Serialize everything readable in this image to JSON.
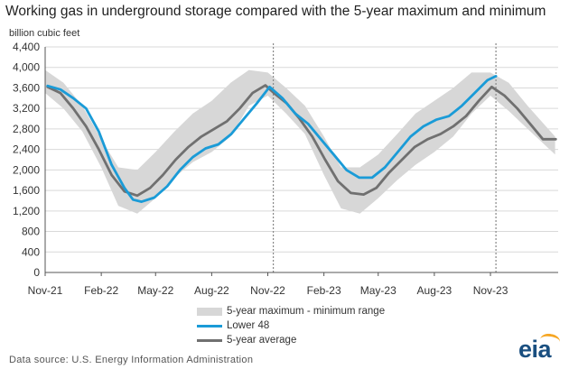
{
  "title": "Working gas in underground  storage compared with the 5-year maximum and minimum",
  "unit_label": "billion cubic feet",
  "source": "Data source:  U.S. Energy Information Administration",
  "logo_text": "eia",
  "colors": {
    "lower48": "#1a9bd7",
    "average": "#707070",
    "range": "#d7d7d7",
    "divider": "#888888",
    "logo": "#1a4f80",
    "logo_accent": "#f6a623"
  },
  "legend": {
    "range": "5-year maximum - minimum range",
    "lower48": "Lower 48",
    "average": "5-year average"
  },
  "chart_data": {
    "type": "area",
    "title": "Working gas in underground  storage compared with the 5-year maximum and minimum",
    "ylabel": "billion cubic feet",
    "ylim": [
      0,
      4400
    ],
    "yticks": [
      0,
      400,
      800,
      1200,
      1600,
      2000,
      2400,
      2800,
      3200,
      3600,
      4000,
      4400
    ],
    "ytick_labels": [
      "0",
      "400",
      "800",
      "1,200",
      "1,600",
      "2,000",
      "2,400",
      "2,800",
      "3,200",
      "3,600",
      "4,000",
      "4,400"
    ],
    "xlim": [
      "2021-11-01",
      "2024-02-20"
    ],
    "xticks": [
      "2021-11-01",
      "2022-02-01",
      "2022-05-01",
      "2022-08-01",
      "2022-11-01",
      "2023-02-01",
      "2023-05-01",
      "2023-08-01",
      "2023-11-01"
    ],
    "xtick_labels": [
      "Nov-21",
      "Feb-22",
      "May-22",
      "Aug-22",
      "Nov-22",
      "Feb-23",
      "May-23",
      "Aug-23",
      "Nov-23"
    ],
    "grid": "horizontal",
    "legend_position": "bottom",
    "dividers": [
      "2022-11-10",
      "2023-11-10"
    ],
    "series": [
      {
        "name": "5-year maximum - minimum range",
        "type": "band",
        "x": [
          "2021-11-01",
          "2021-12-01",
          "2022-01-01",
          "2022-02-01",
          "2022-03-01",
          "2022-04-01",
          "2022-05-01",
          "2022-06-01",
          "2022-07-01",
          "2022-08-01",
          "2022-09-01",
          "2022-10-01",
          "2022-11-01",
          "2022-12-01",
          "2023-01-01",
          "2023-02-01",
          "2023-03-01",
          "2023-04-01",
          "2023-05-01",
          "2023-06-01",
          "2023-07-01",
          "2023-08-01",
          "2023-09-01",
          "2023-10-01",
          "2023-11-01",
          "2023-12-01",
          "2024-01-01",
          "2024-02-15"
        ],
        "upper": [
          3950,
          3700,
          3250,
          2600,
          2050,
          2000,
          2350,
          2750,
          3100,
          3350,
          3700,
          3950,
          3900,
          3600,
          3250,
          2650,
          2050,
          2050,
          2300,
          2700,
          3100,
          3350,
          3600,
          3900,
          3900,
          3700,
          3250,
          2650
        ],
        "lower": [
          3500,
          3200,
          2750,
          2050,
          1300,
          1150,
          1450,
          1850,
          2150,
          2350,
          2650,
          3250,
          3450,
          3100,
          2700,
          1900,
          1250,
          1150,
          1450,
          1800,
          2100,
          2350,
          2650,
          3100,
          3450,
          3150,
          2800,
          2300
        ]
      },
      {
        "name": "Lower 48",
        "x": [
          "2021-11-05",
          "2021-11-26",
          "2021-12-17",
          "2022-01-07",
          "2022-01-28",
          "2022-02-18",
          "2022-03-11",
          "2022-03-25",
          "2022-04-08",
          "2022-04-29",
          "2022-05-20",
          "2022-06-10",
          "2022-07-01",
          "2022-07-22",
          "2022-08-12",
          "2022-09-02",
          "2022-09-23",
          "2022-10-14",
          "2022-11-04",
          "2022-11-25",
          "2022-12-16",
          "2023-01-06",
          "2023-01-27",
          "2023-02-17",
          "2023-03-10",
          "2023-03-31",
          "2023-04-21",
          "2023-05-12",
          "2023-06-02",
          "2023-06-23",
          "2023-07-14",
          "2023-08-04",
          "2023-08-25",
          "2023-09-15",
          "2023-10-06",
          "2023-10-27",
          "2023-11-10"
        ],
        "y": [
          3640,
          3570,
          3400,
          3200,
          2750,
          2100,
          1650,
          1420,
          1380,
          1460,
          1680,
          2000,
          2250,
          2420,
          2500,
          2700,
          3000,
          3300,
          3620,
          3400,
          3100,
          2900,
          2600,
          2300,
          2000,
          1850,
          1850,
          2050,
          2350,
          2650,
          2850,
          2980,
          3050,
          3250,
          3500,
          3750,
          3830
        ]
      },
      {
        "name": "5-year average",
        "x": [
          "2021-11-05",
          "2021-11-26",
          "2021-12-17",
          "2022-01-07",
          "2022-01-28",
          "2022-02-18",
          "2022-03-11",
          "2022-04-01",
          "2022-04-22",
          "2022-05-13",
          "2022-06-03",
          "2022-06-24",
          "2022-07-15",
          "2022-08-05",
          "2022-08-26",
          "2022-09-16",
          "2022-10-07",
          "2022-10-28",
          "2022-11-11",
          "2022-12-02",
          "2022-12-23",
          "2023-01-13",
          "2023-02-03",
          "2023-02-24",
          "2023-03-17",
          "2023-04-07",
          "2023-04-28",
          "2023-05-19",
          "2023-06-09",
          "2023-06-30",
          "2023-07-21",
          "2023-08-11",
          "2023-09-01",
          "2023-09-22",
          "2023-10-13",
          "2023-11-03",
          "2023-11-24",
          "2023-12-15",
          "2024-01-05",
          "2024-01-26",
          "2024-02-16"
        ],
        "y": [
          3620,
          3500,
          3200,
          2850,
          2400,
          1900,
          1580,
          1500,
          1650,
          1900,
          2200,
          2450,
          2650,
          2800,
          2950,
          3200,
          3500,
          3650,
          3500,
          3300,
          3000,
          2650,
          2200,
          1780,
          1550,
          1520,
          1650,
          1950,
          2200,
          2450,
          2600,
          2700,
          2850,
          3050,
          3350,
          3620,
          3450,
          3200,
          2900,
          2600,
          2600
        ]
      }
    ]
  }
}
